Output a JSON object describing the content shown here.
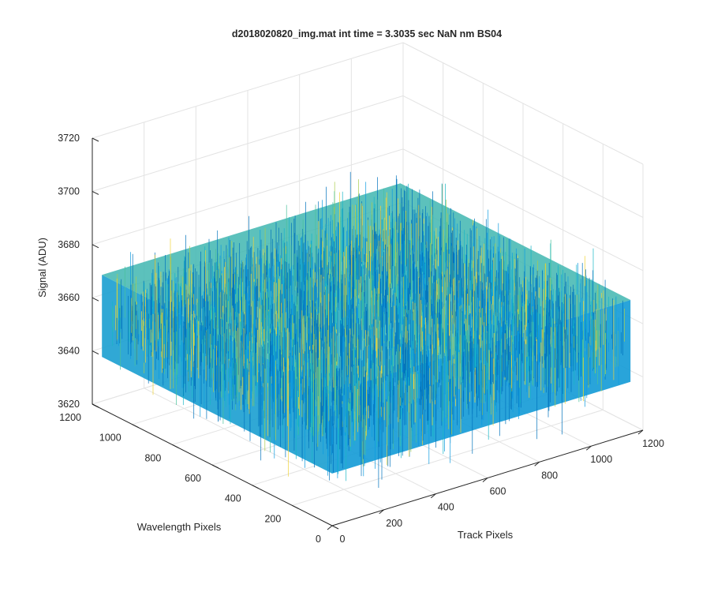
{
  "chart_data": {
    "type": "surface",
    "title": "d2018020820_img.mat int time = 3.3035 sec  NaN nm BS04",
    "xlabel": "Track Pixels",
    "ylabel": "Wavelength Pixels",
    "zlabel": "Signal (ADU)",
    "xlim": [
      0,
      1200
    ],
    "ylim": [
      0,
      1200
    ],
    "zlim": [
      3620,
      3720
    ],
    "x_data_extent": [
      0,
      1152
    ],
    "y_data_extent": [
      0,
      1152
    ],
    "xticks": [
      "0",
      "200",
      "400",
      "600",
      "800",
      "1000",
      "1200"
    ],
    "yticks": [
      "0",
      "200",
      "400",
      "600",
      "800",
      "1000",
      "1200"
    ],
    "zticks": [
      "3620",
      "3640",
      "3660",
      "3680",
      "3700",
      "3720"
    ],
    "signal_mean": 3655,
    "signal_noise_std": 7,
    "colormap": "parula",
    "colors": [
      "#0072bd",
      "#0d9be0",
      "#18b6c6",
      "#49c19a",
      "#a8cc4e",
      "#f0d33a"
    ],
    "grid": true,
    "view": "3d-azimuth-37.5-elevation-30"
  }
}
